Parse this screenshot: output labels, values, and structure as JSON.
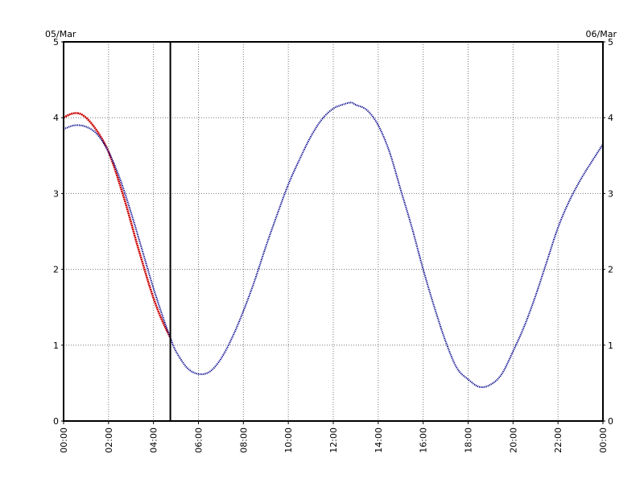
{
  "chart_data": {
    "type": "line",
    "title": "",
    "xlabel": "",
    "ylabel": "",
    "date_start": "05/Mar",
    "date_end": "06/Mar",
    "xlim": [
      0,
      24
    ],
    "ylim": [
      0,
      5
    ],
    "x_ticks": [
      "00:00",
      "02:00",
      "04:00",
      "06:00",
      "08:00",
      "10:00",
      "12:00",
      "14:00",
      "16:00",
      "18:00",
      "20:00",
      "22:00",
      "00:00"
    ],
    "y_ticks": [
      "0",
      "1",
      "2",
      "3",
      "4",
      "5"
    ],
    "grid": true,
    "current_time_marker": 4.75,
    "series": [
      {
        "color": "#cc0000",
        "x": [
          0,
          0.25,
          0.5,
          0.75,
          1.0,
          1.25,
          1.5,
          1.75,
          2.0,
          2.25,
          2.5,
          2.75,
          3.0,
          3.25,
          3.5,
          3.75,
          4.0,
          4.25,
          4.5,
          4.75
        ],
        "y": [
          4.0,
          4.04,
          4.06,
          4.05,
          4.0,
          3.92,
          3.82,
          3.7,
          3.55,
          3.35,
          3.12,
          2.88,
          2.62,
          2.35,
          2.1,
          1.85,
          1.62,
          1.42,
          1.25,
          1.1
        ]
      },
      {
        "color": "#00008b",
        "x": [
          0,
          0.5,
          1,
          1.5,
          2,
          2.5,
          3,
          3.5,
          4,
          4.5,
          4.75,
          5,
          5.5,
          6,
          6.5,
          7,
          7.5,
          8,
          8.5,
          9,
          9.5,
          10,
          10.5,
          11,
          11.5,
          12,
          12.5,
          12.8,
          13,
          13.5,
          14,
          14.5,
          15,
          15.5,
          16,
          16.5,
          17,
          17.5,
          18,
          18.5,
          19,
          19.5,
          20,
          20.5,
          21,
          21.5,
          22,
          22.5,
          23,
          23.5,
          24
        ],
        "y": [
          3.85,
          3.9,
          3.88,
          3.78,
          3.55,
          3.2,
          2.75,
          2.25,
          1.75,
          1.3,
          1.1,
          0.92,
          0.7,
          0.62,
          0.65,
          0.82,
          1.1,
          1.45,
          1.85,
          2.3,
          2.72,
          3.12,
          3.45,
          3.75,
          3.98,
          4.12,
          4.18,
          4.2,
          4.17,
          4.1,
          3.9,
          3.55,
          3.05,
          2.55,
          2.0,
          1.5,
          1.05,
          0.7,
          0.55,
          0.45,
          0.48,
          0.62,
          0.92,
          1.25,
          1.65,
          2.1,
          2.55,
          2.9,
          3.18,
          3.42,
          3.65
        ]
      }
    ]
  }
}
